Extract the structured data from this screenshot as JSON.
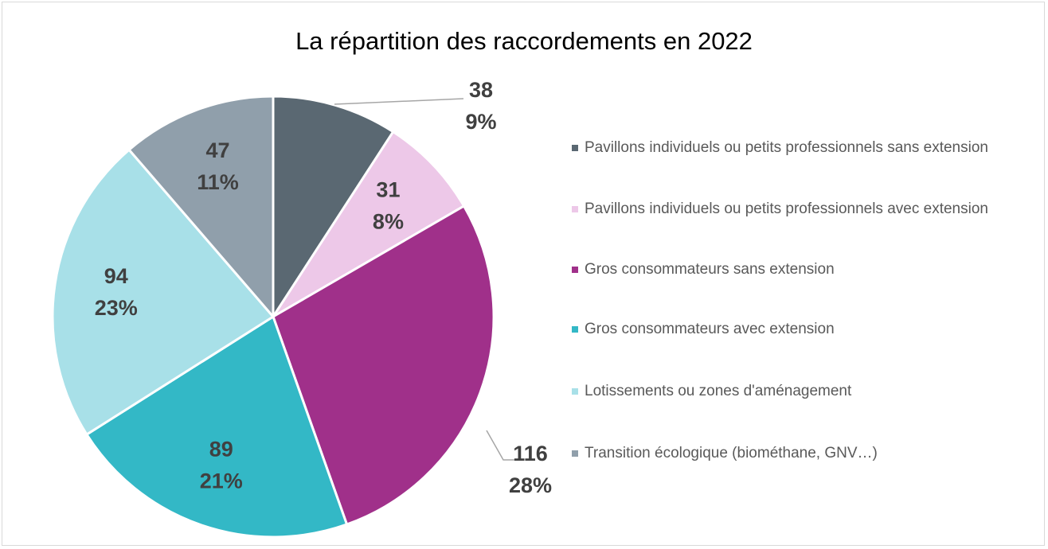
{
  "chart_data": {
    "type": "pie",
    "title": "La répartition des raccordements en 2022",
    "categories": [
      "Pavillons individuels ou petits professionnels sans extension",
      "Pavillons individuels ou petits professionnels avec extension",
      "Gros consommateurs sans extension",
      "Gros consommateurs avec extension",
      "Lotissements ou zones d'aménagement",
      "Transition écologique (biométhane, GNV…)"
    ],
    "values": [
      38,
      31,
      116,
      89,
      94,
      47
    ],
    "percentages": [
      9,
      8,
      28,
      21,
      23,
      11
    ],
    "percentage_labels": [
      "9%",
      "8%",
      "28%",
      "21%",
      "23%",
      "11%"
    ],
    "colors": [
      "#5a6872",
      "#edc8e8",
      "#a0308a",
      "#33b8c6",
      "#a8e0e8",
      "#909fab"
    ],
    "legend": "right"
  }
}
